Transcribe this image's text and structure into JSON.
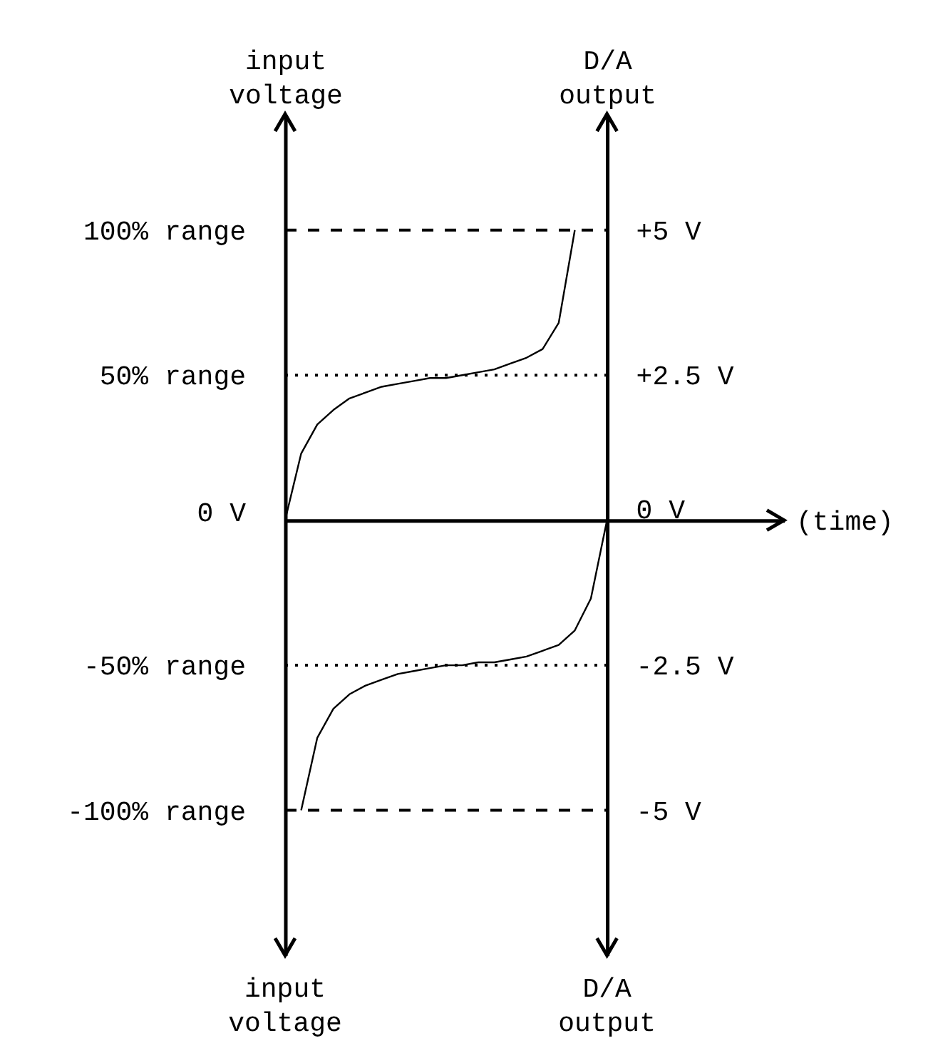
{
  "chart_data": {
    "type": "line",
    "xlabel": "(time)",
    "ylabel": "input voltage",
    "y2label": "D/A output",
    "categories": [
      null,
      null,
      null,
      null,
      null,
      null,
      null,
      null,
      null,
      null,
      null,
      null,
      null,
      null,
      null,
      null,
      null,
      null,
      null,
      null,
      null
    ],
    "series": [
      {
        "color": "#000000",
        "values": [
          0,
          23,
          33,
          38,
          42,
          44,
          46,
          47,
          48,
          49,
          49,
          50,
          51,
          52,
          54,
          56,
          59,
          68,
          100,
          null,
          null
        ]
      },
      {
        "color": "#000000",
        "values": [
          null,
          -100,
          -75,
          -65,
          -60,
          -57,
          -55,
          -53,
          -52,
          -51,
          -50,
          -50,
          -49,
          -49,
          -48,
          -47,
          -45,
          -43,
          -38,
          -27,
          0
        ]
      }
    ],
    "ylim": [
      -150,
      140
    ],
    "yticks": [
      {
        "value": 100,
        "label": "100% range"
      },
      {
        "value": 50,
        "label": "50% range"
      },
      {
        "value": 0,
        "label": "0 V"
      },
      {
        "value": -50,
        "label": "-50% range"
      },
      {
        "value": -100,
        "label": "-100% range"
      }
    ],
    "y2lim": [
      -7.5,
      7
    ],
    "y2ticks": [
      {
        "value": 5,
        "label": "+5 V"
      },
      {
        "value": 2.5,
        "label": "+2.5 V"
      },
      {
        "value": 0,
        "label": "0 V"
      },
      {
        "value": -2.5,
        "label": "-2.5 V"
      },
      {
        "value": -5,
        "label": "-5 V"
      }
    ],
    "ref_lines": [
      {
        "axis": "y2",
        "value": 5,
        "line_style": "dashed"
      },
      {
        "axis": "y2",
        "value": 2.5,
        "line_style": "dotted"
      },
      {
        "axis": "y2",
        "value": -2.5,
        "line_style": "dotted"
      },
      {
        "axis": "y2",
        "value": -5,
        "line_style": "dashed"
      }
    ],
    "grid": false,
    "legend": false
  }
}
